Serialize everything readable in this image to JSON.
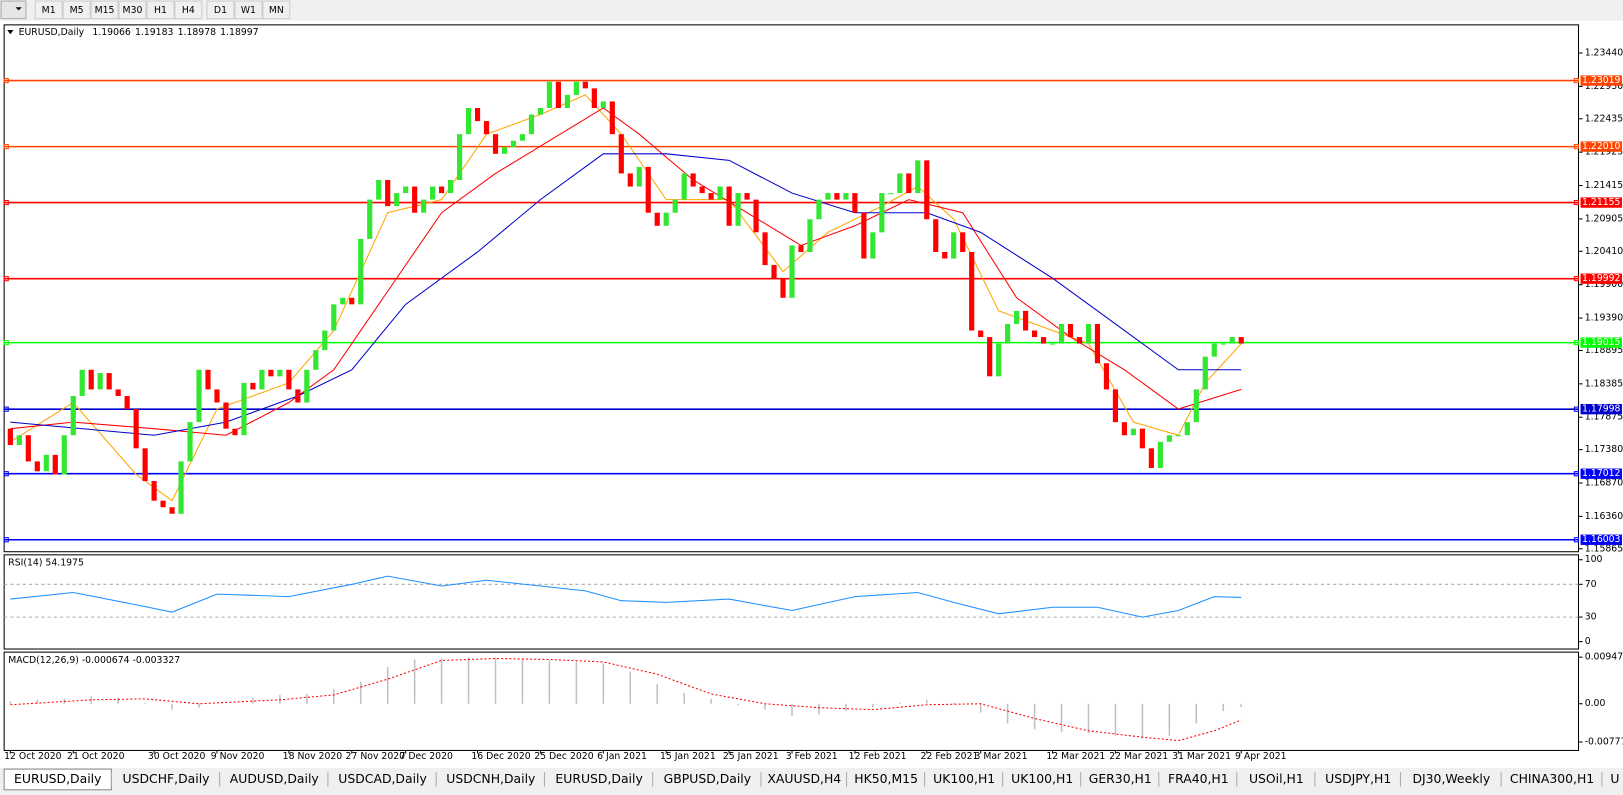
{
  "toolbar": {
    "timeframes": [
      "M1",
      "M5",
      "M15",
      "M30",
      "H1",
      "H4",
      "D1",
      "W1",
      "MN"
    ]
  },
  "chart_data": [
    {
      "type": "candlestick",
      "title": "EURUSD,Daily",
      "quote": {
        "open": 1.19066,
        "high": 1.19183,
        "low": 1.18978,
        "close": 1.18997
      },
      "up_color": "#32e632",
      "down_color": "#ff0000",
      "categories": [
        "12 Oct 2020",
        null,
        null,
        null,
        null,
        null,
        null,
        "21 Oct 2020",
        null,
        null,
        null,
        null,
        null,
        null,
        null,
        null,
        "30 Oct 2020",
        null,
        null,
        null,
        null,
        null,
        null,
        "9 Nov 2020",
        null,
        null,
        null,
        null,
        null,
        null,
        null,
        "18 Nov 2020",
        null,
        null,
        null,
        null,
        null,
        null,
        "27 Nov 2020",
        null,
        null,
        null,
        null,
        null,
        "7 Dec 2020",
        null,
        null,
        null,
        null,
        null,
        null,
        null,
        "16 Dec 2020",
        null,
        null,
        null,
        null,
        null,
        null,
        "25 Dec 2020",
        null,
        null,
        null,
        null,
        null,
        null,
        "6 Jan 2021",
        null,
        null,
        null,
        null,
        null,
        null,
        "15 Jan 2021",
        null,
        null,
        null,
        null,
        null,
        null,
        "25 Jan 2021",
        null,
        null,
        null,
        null,
        null,
        null,
        "3 Feb 2021",
        null,
        null,
        null,
        null,
        null,
        null,
        "12 Feb 2021",
        null,
        null,
        null,
        null,
        null,
        null,
        null,
        "22 Feb 2021",
        null,
        null,
        null,
        null,
        null,
        "3 Mar 2021",
        null,
        null,
        null,
        null,
        null,
        null,
        null,
        "12 Mar 2021",
        null,
        null,
        null,
        null,
        null,
        null,
        "22 Mar 2021",
        null,
        null,
        null,
        null,
        null,
        null,
        "31 Mar 2021",
        null,
        null,
        null,
        null,
        null,
        null,
        "9 Apr 2021"
      ],
      "open": [
        1.177,
        1.1745,
        1.176,
        1.172,
        1.1705,
        1.173,
        1.17,
        1.176,
        1.182,
        1.186,
        1.183,
        1.1855,
        1.183,
        1.182,
        1.18,
        1.174,
        1.169,
        1.166,
        1.165,
        1.164,
        1.172,
        1.178,
        1.186,
        1.183,
        1.181,
        1.177,
        1.176,
        1.184,
        1.183,
        1.186,
        1.185,
        1.186,
        1.183,
        1.181,
        1.186,
        1.189,
        1.192,
        1.196,
        1.197,
        1.196,
        1.206,
        1.212,
        1.215,
        1.211,
        1.213,
        1.214,
        1.21,
        1.212,
        1.214,
        1.213,
        1.215,
        1.222,
        1.226,
        1.224,
        1.222,
        1.219,
        1.22,
        1.221,
        1.222,
        1.225,
        1.226,
        1.23,
        1.226,
        1.228,
        1.23,
        1.229,
        1.226,
        1.227,
        1.222,
        1.216,
        1.214,
        1.217,
        1.21,
        1.208,
        1.21,
        1.212,
        1.216,
        1.214,
        1.213,
        1.212,
        1.214,
        1.208,
        1.213,
        1.212,
        1.207,
        1.202,
        1.2,
        1.197,
        1.205,
        1.204,
        1.209,
        1.212,
        1.213,
        1.212,
        1.213,
        1.21,
        1.203,
        1.207,
        1.213,
        1.213,
        1.216,
        1.213,
        1.218,
        1.209,
        1.204,
        1.203,
        1.207,
        1.204,
        1.192,
        1.191,
        1.185,
        1.19,
        1.193,
        1.195,
        1.192,
        1.191,
        1.19,
        1.19,
        1.193,
        1.191,
        1.19,
        1.193,
        1.187,
        1.183,
        1.178,
        1.176,
        1.177,
        1.174,
        1.171,
        1.175,
        1.176,
        1.176,
        1.178,
        1.183,
        1.188,
        1.19,
        1.19,
        1.191
      ],
      "close": [
        1.1745,
        1.176,
        1.172,
        1.1705,
        1.173,
        1.17,
        1.176,
        1.182,
        1.186,
        1.183,
        1.1855,
        1.183,
        1.182,
        1.18,
        1.174,
        1.169,
        1.166,
        1.165,
        1.164,
        1.172,
        1.178,
        1.186,
        1.183,
        1.181,
        1.177,
        1.176,
        1.184,
        1.183,
        1.186,
        1.185,
        1.186,
        1.183,
        1.181,
        1.186,
        1.189,
        1.192,
        1.196,
        1.197,
        1.196,
        1.206,
        1.212,
        1.215,
        1.211,
        1.213,
        1.214,
        1.21,
        1.212,
        1.214,
        1.213,
        1.215,
        1.222,
        1.226,
        1.224,
        1.222,
        1.219,
        1.22,
        1.221,
        1.222,
        1.225,
        1.226,
        1.23,
        1.226,
        1.228,
        1.23,
        1.229,
        1.226,
        1.227,
        1.222,
        1.216,
        1.214,
        1.217,
        1.21,
        1.208,
        1.21,
        1.212,
        1.216,
        1.214,
        1.213,
        1.212,
        1.214,
        1.208,
        1.213,
        1.212,
        1.207,
        1.202,
        1.2,
        1.197,
        1.205,
        1.204,
        1.209,
        1.212,
        1.213,
        1.212,
        1.213,
        1.21,
        1.203,
        1.207,
        1.213,
        1.213,
        1.216,
        1.213,
        1.218,
        1.209,
        1.204,
        1.203,
        1.207,
        1.204,
        1.192,
        1.191,
        1.185,
        1.19,
        1.193,
        1.195,
        1.192,
        1.191,
        1.19,
        1.19,
        1.193,
        1.191,
        1.19,
        1.193,
        1.187,
        1.183,
        1.178,
        1.176,
        1.177,
        1.174,
        1.171,
        1.175,
        1.176,
        1.176,
        1.178,
        1.183,
        1.188,
        1.19,
        1.19,
        1.191,
        1.19
      ],
      "lines": [
        {
          "color": "#ffa500",
          "x": [
            0,
            7,
            14,
            18,
            23,
            31,
            36,
            42,
            48,
            53,
            59,
            64,
            68,
            73,
            80,
            86,
            91,
            97,
            101,
            105,
            110,
            116,
            120,
            125,
            130,
            133,
            137
          ],
          "values": [
            1.175,
            1.181,
            1.17,
            1.166,
            1.18,
            1.184,
            1.192,
            1.21,
            1.212,
            1.222,
            1.225,
            1.228,
            1.222,
            1.212,
            1.212,
            1.201,
            1.207,
            1.211,
            1.214,
            1.209,
            1.195,
            1.192,
            1.19,
            1.178,
            1.176,
            1.184,
            1.19
          ]
        },
        {
          "color": "#ff0000",
          "x": [
            0,
            7,
            16,
            24,
            31,
            36,
            42,
            48,
            54,
            60,
            66,
            70,
            76,
            82,
            88,
            94,
            100,
            106,
            112,
            118,
            124,
            130,
            137
          ],
          "values": [
            1.177,
            1.178,
            1.177,
            1.176,
            1.181,
            1.186,
            1.198,
            1.21,
            1.216,
            1.221,
            1.226,
            1.222,
            1.215,
            1.21,
            1.205,
            1.208,
            1.212,
            1.21,
            1.197,
            1.191,
            1.186,
            1.18,
            1.183
          ]
        },
        {
          "color": "#0000cd",
          "x": [
            0,
            16,
            24,
            32,
            38,
            44,
            52,
            59,
            66,
            73,
            80,
            87,
            94,
            102,
            108,
            116,
            123,
            130,
            137
          ],
          "values": [
            1.178,
            1.176,
            1.178,
            1.182,
            1.186,
            1.196,
            1.204,
            1.212,
            1.219,
            1.219,
            1.218,
            1.213,
            1.21,
            1.21,
            1.207,
            1.2,
            1.193,
            1.186,
            1.186
          ]
        }
      ],
      "levels": [
        {
          "value": 1.23019,
          "color": "#ff4500"
        },
        {
          "value": 1.2201,
          "label": "1.22010",
          "color": "#ff4500"
        },
        {
          "value": 1.21155,
          "color": "#ff0000"
        },
        {
          "value": 1.19992,
          "color": "#ff0000"
        },
        {
          "value": 1.19015,
          "color": "#00ff00"
        },
        {
          "value": 1.17998,
          "color": "#0000cd"
        },
        {
          "value": 1.17012,
          "color": "#0000ff"
        },
        {
          "value": 1.16003,
          "color": "#0000ff"
        }
      ],
      "ylim": [
        1.1582,
        1.2387
      ],
      "yticks": [
        {
          "value": 1.2344,
          "label": "1.23440"
        },
        {
          "value": 1.2293,
          "label": "1.22930"
        },
        1.22435,
        1.21925,
        1.21415,
        1.20905,
        {
          "value": 1.2041,
          "label": "1.20410"
        },
        {
          "value": 1.199,
          "label": "1.19900"
        },
        {
          "value": 1.1939,
          "label": "1.19390"
        },
        1.18895,
        1.18385,
        1.17875,
        {
          "value": 1.1738,
          "label": "1.17380"
        },
        {
          "value": 1.1687,
          "label": "1.16870"
        },
        {
          "value": 1.1636,
          "label": "1.16360"
        },
        1.15865
      ]
    },
    {
      "type": "line",
      "title": "RSI(14) 54.1975",
      "color": "#1e90ff",
      "x": [
        0,
        7,
        14,
        18,
        23,
        31,
        38,
        42,
        48,
        53,
        59,
        64,
        68,
        73,
        80,
        87,
        94,
        101,
        105,
        110,
        116,
        121,
        126,
        130,
        134,
        137
      ],
      "values": [
        52,
        60,
        45,
        36,
        58,
        55,
        70,
        80,
        68,
        75,
        68,
        62,
        50,
        48,
        52,
        38,
        55,
        60,
        48,
        34,
        42,
        42,
        30,
        38,
        55,
        54
      ],
      "dashed_levels": [
        30,
        70
      ],
      "ylim": [
        -9,
        106
      ],
      "yticks": [
        0,
        30,
        70,
        100
      ]
    },
    {
      "type": "macd",
      "title": "MACD(12,26,9) -0.000674 -0.003327",
      "color": "#c0c0c0",
      "signal_color": "#ff0000",
      "x": [
        0,
        3,
        6,
        9,
        12,
        15,
        18,
        21,
        24,
        27,
        30,
        33,
        36,
        39,
        42,
        45,
        48,
        51,
        54,
        57,
        60,
        63,
        66,
        69,
        72,
        75,
        78,
        81,
        84,
        87,
        90,
        93,
        96,
        99,
        102,
        105,
        108,
        111,
        114,
        117,
        120,
        123,
        126,
        129,
        132,
        135,
        137
      ],
      "values": [
        0.0005,
        0.0008,
        0.001,
        0.0015,
        0.0013,
        0.0002,
        -0.0012,
        -0.0008,
        0,
        0.0012,
        0.0018,
        0.002,
        0.003,
        0.0045,
        0.0075,
        0.009,
        0.0092,
        0.0094,
        0.0094,
        0.009,
        0.0088,
        0.0085,
        0.0082,
        0.0065,
        0.004,
        0.0022,
        0.001,
        -0.0003,
        -0.0012,
        -0.0025,
        -0.0022,
        -0.0015,
        -0.0008,
        0.0002,
        0.0008,
        0.0002,
        -0.0018,
        -0.004,
        -0.0052,
        -0.0058,
        -0.006,
        -0.0065,
        -0.007,
        -0.0065,
        -0.004,
        -0.0015,
        -0.0007
      ],
      "signal_x": [
        0,
        9,
        15,
        21,
        30,
        36,
        42,
        48,
        54,
        60,
        66,
        72,
        78,
        84,
        90,
        96,
        102,
        108,
        114,
        120,
        126,
        130,
        134,
        137
      ],
      "signal": [
        -0.0002,
        0.0008,
        0.001,
        0,
        0.0008,
        0.0018,
        0.005,
        0.0088,
        0.0092,
        0.009,
        0.0085,
        0.006,
        0.002,
        0,
        -0.0008,
        -0.0012,
        -0.0002,
        0,
        -0.003,
        -0.0055,
        -0.0068,
        -0.0075,
        -0.0055,
        -0.0033
      ],
      "ylim": [
        -0.0095,
        0.0105
      ],
      "yticks": [
        0.009478,
        {
          "value": 0,
          "label": "0.00"
        },
        -0.007778
      ]
    }
  ],
  "tabs": [
    "EURUSD,Daily",
    "USDCHF,Daily",
    "AUDUSD,Daily",
    "USDCAD,Daily",
    "USDCNH,Daily",
    "EURUSD,Daily",
    "GBPUSD,Daily",
    "XAUUSD,H4",
    "HK50,M15",
    "UK100,H1",
    "UK100,H1",
    "GER30,H1",
    "FRA40,H1",
    "USOil,H1",
    "USDJPY,H1",
    "DJ30,Weekly",
    "CHINA300,H1",
    "U"
  ]
}
